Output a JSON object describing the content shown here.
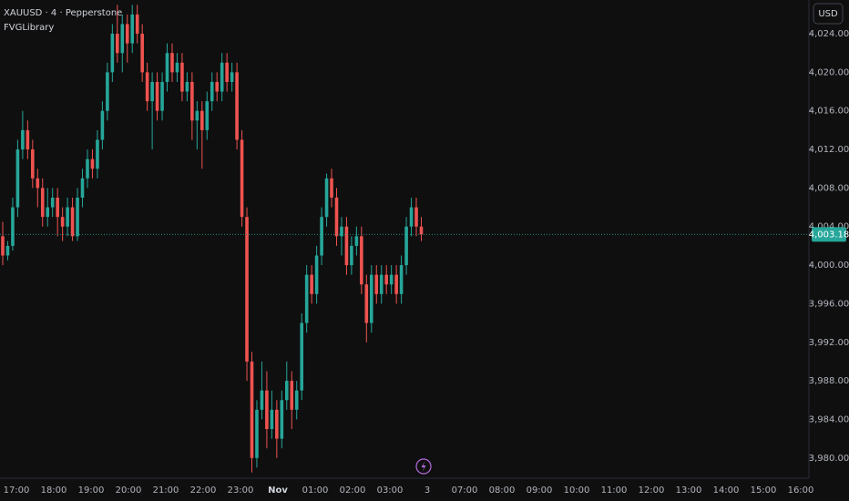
{
  "chart_data": {
    "type": "candlestick",
    "title": "XAUUSD · 4 · Pepperstone",
    "subtitle": "FVGLibrary",
    "currency": "USD",
    "up_color": "#26a69a",
    "down_color": "#ef5350",
    "ylim": [
      3977.9,
      4027.5
    ],
    "yticks": [
      {
        "value": 4024,
        "label": "4,024.00"
      },
      {
        "value": 4020,
        "label": "4,020.00"
      },
      {
        "value": 4016,
        "label": "4,016.00"
      },
      {
        "value": 4012,
        "label": "4,012.00"
      },
      {
        "value": 4008,
        "label": "4,008.00"
      },
      {
        "value": 4004,
        "label": "4,004.00"
      },
      {
        "value": 4000,
        "label": "4,000.00"
      },
      {
        "value": 3996,
        "label": "3,996.00"
      },
      {
        "value": 3992,
        "label": "3,992.00"
      },
      {
        "value": 3988,
        "label": "3,988.00"
      },
      {
        "value": 3984,
        "label": "3,984.00"
      },
      {
        "value": 3980,
        "label": "3,980.00"
      }
    ],
    "xticks": [
      "17:00",
      "18:00",
      "19:00",
      "20:00",
      "21:00",
      "22:00",
      "23:00",
      "Nov",
      "01:00",
      "02:00",
      "03:00",
      "3",
      "07:00",
      "08:00",
      "09:00",
      "10:00",
      "11:00",
      "12:00",
      "13:00",
      "14:00",
      "15:00",
      "16:00"
    ],
    "last_price": {
      "value": 4003.18,
      "label": "4,003.18"
    },
    "ohlc": [
      [
        4003,
        4004.5,
        4000,
        4001
      ],
      [
        4001,
        4002.5,
        4000.5,
        4002
      ],
      [
        4002,
        4007,
        4001.5,
        4006
      ],
      [
        4006,
        4013,
        4005,
        4012
      ],
      [
        4012,
        4016,
        4011,
        4014
      ],
      [
        4014,
        4015,
        4011,
        4012
      ],
      [
        4012,
        4013,
        4008,
        4009
      ],
      [
        4009,
        4010,
        4006,
        4008
      ],
      [
        4008,
        4009,
        4004,
        4005
      ],
      [
        4005,
        4008,
        4004,
        4006
      ],
      [
        4006,
        4008,
        4005,
        4007
      ],
      [
        4007,
        4008,
        4003,
        4005
      ],
      [
        4005,
        4006,
        4002.5,
        4004
      ],
      [
        4004,
        4007,
        4003,
        4006
      ],
      [
        4006,
        4007,
        4002.5,
        4003
      ],
      [
        4003,
        4008,
        4002.5,
        4007
      ],
      [
        4007,
        4010,
        4006,
        4009
      ],
      [
        4009,
        4012,
        4008,
        4011
      ],
      [
        4011,
        4012,
        4009,
        4010
      ],
      [
        4010,
        4014,
        4009,
        4013
      ],
      [
        4013,
        4017,
        4012,
        4016
      ],
      [
        4016,
        4021,
        4015,
        4020
      ],
      [
        4020,
        4025,
        4019,
        4024
      ],
      [
        4024,
        4027,
        4021,
        4022
      ],
      [
        4022,
        4026,
        4020,
        4025
      ],
      [
        4025,
        4026,
        4021,
        4023
      ],
      [
        4023,
        4027,
        4022,
        4026
      ],
      [
        4026,
        4027,
        4023,
        4024
      ],
      [
        4024,
        4025,
        4019,
        4020
      ],
      [
        4020,
        4021,
        4016,
        4017
      ],
      [
        4017,
        4020,
        4012,
        4019
      ],
      [
        4019,
        4020,
        4015,
        4016
      ],
      [
        4016,
        4020,
        4015,
        4019
      ],
      [
        4019,
        4023,
        4018,
        4022
      ],
      [
        4022,
        4023,
        4019,
        4020
      ],
      [
        4020,
        4022,
        4019,
        4021
      ],
      [
        4021,
        4022,
        4017,
        4018
      ],
      [
        4018,
        4020,
        4017,
        4019
      ],
      [
        4019,
        4020,
        4013,
        4015
      ],
      [
        4015,
        4017,
        4012,
        4016
      ],
      [
        4016,
        4017,
        4010,
        4014
      ],
      [
        4014,
        4018,
        4013,
        4017
      ],
      [
        4017,
        4020,
        4016,
        4019
      ],
      [
        4019,
        4020,
        4017,
        4018
      ],
      [
        4018,
        4022,
        4017,
        4021
      ],
      [
        4021,
        4022,
        4018,
        4019
      ],
      [
        4019,
        4021,
        4018,
        4020
      ],
      [
        4020,
        4021,
        4012,
        4013
      ],
      [
        4013,
        4014,
        4004,
        4005
      ],
      [
        4005,
        4006,
        3988,
        3990
      ],
      [
        3990,
        3991,
        3978.5,
        3980
      ],
      [
        3980,
        3986,
        3979,
        3985
      ],
      [
        3985,
        3990,
        3984,
        3987
      ],
      [
        3987,
        3989,
        3981,
        3983
      ],
      [
        3983,
        3987,
        3982,
        3985
      ],
      [
        3985,
        3986,
        3980,
        3982
      ],
      [
        3982,
        3987,
        3981,
        3986
      ],
      [
        3986,
        3990,
        3985,
        3988
      ],
      [
        3988,
        3989,
        3983,
        3985
      ],
      [
        3985,
        3988,
        3984,
        3987
      ],
      [
        3987,
        3995,
        3986,
        3994
      ],
      [
        3994,
        4000,
        3993,
        3999
      ],
      [
        3999,
        4000,
        3996,
        3997
      ],
      [
        3997,
        4002,
        3996,
        4001
      ],
      [
        4001,
        4006,
        4000,
        4005
      ],
      [
        4005,
        4009.5,
        4004,
        4009
      ],
      [
        4009,
        4010,
        4006,
        4007
      ],
      [
        4007,
        4008,
        4002,
        4003
      ],
      [
        4003,
        4005,
        4001,
        4004
      ],
      [
        4004,
        4005,
        3999,
        4000
      ],
      [
        4000,
        4003,
        3999,
        4002
      ],
      [
        4002,
        4004,
        4001,
        4003
      ],
      [
        4003,
        4004,
        3997,
        3998
      ],
      [
        3998,
        3999,
        3992,
        3994
      ],
      [
        3994,
        4000,
        3993,
        3999
      ],
      [
        3999,
        4000,
        3996,
        3997
      ],
      [
        3997,
        4000,
        3996,
        3999
      ],
      [
        3999,
        4000,
        3997,
        3998
      ],
      [
        3998,
        4000,
        3997,
        3999
      ],
      [
        3999,
        4000,
        3996,
        3997
      ],
      [
        3997,
        4001,
        3996,
        4000
      ],
      [
        4000,
        4005,
        3999,
        4004
      ],
      [
        4004,
        4007,
        4003,
        4006
      ],
      [
        4006,
        4007,
        4003,
        4004
      ],
      [
        4004,
        4005,
        4002.5,
        4003.18
      ]
    ]
  }
}
